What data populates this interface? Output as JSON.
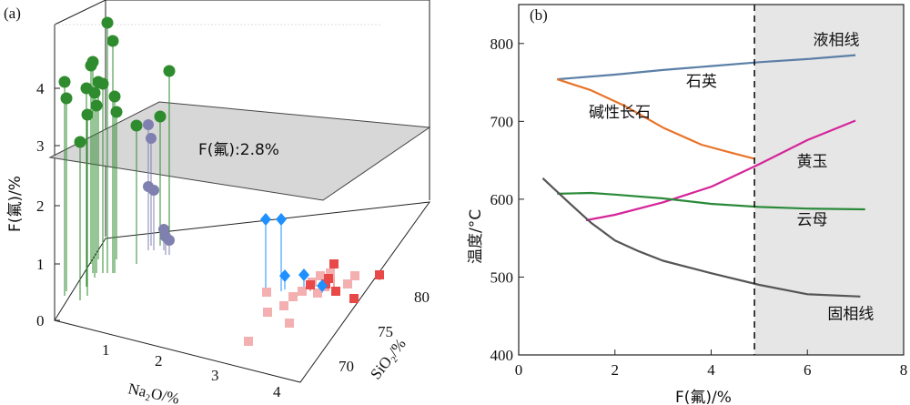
{
  "figure_a": {
    "panel_label": "(a)",
    "z_axis_label": "F(氟)/%",
    "x_axis_label": "Na₂O/%",
    "y_axis_label": "SiO₂/%",
    "plane_label": "F(氟):2.8%",
    "plane_value": 2.8,
    "z_ticks": [
      "0",
      "1",
      "2",
      "3",
      "4"
    ],
    "x_ticks": [
      "1",
      "2",
      "3",
      "4"
    ],
    "y_ticks": [
      "70",
      "75",
      "80"
    ],
    "colors": {
      "green": "#2e8b2e",
      "purple": "#8080b0",
      "blue": "#1e90ff",
      "red": "#e84848",
      "pink": "#f4b0b0",
      "plane": "#d0d0d0"
    }
  },
  "chart_data": {
    "type": "line",
    "panel_label": "(b)",
    "xlabel": "F(氟)/%",
    "ylabel": "温度/°C",
    "xlim": [
      0,
      8
    ],
    "ylim": [
      400,
      850
    ],
    "x_ticks": [
      0,
      2,
      4,
      6,
      8
    ],
    "y_ticks": [
      400,
      500,
      600,
      700,
      800
    ],
    "grid": false,
    "shaded_region": {
      "x_from": 4.9,
      "x_to": 8
    },
    "dashed_line_x": 4.9,
    "series": [
      {
        "name": "液相线",
        "color": "#5b7fa6",
        "x": [
          0.8,
          2,
          3,
          4,
          5,
          6,
          7
        ],
        "y": [
          754,
          760,
          766,
          771,
          776,
          780,
          785
        ]
      },
      {
        "name": "碱性长石",
        "color": "#e8742a",
        "x": [
          0.8,
          1.5,
          2.2,
          3,
          3.8,
          4.4,
          4.9
        ],
        "y": [
          754,
          740,
          720,
          692,
          670,
          660,
          652
        ]
      },
      {
        "name": "黄玉",
        "color": "#d6259a",
        "x": [
          1.4,
          2,
          3,
          4,
          5,
          6,
          7
        ],
        "y": [
          573,
          580,
          596,
          616,
          645,
          676,
          701
        ]
      },
      {
        "name": "云母",
        "color": "#2a8a3a",
        "x": [
          0.8,
          1.5,
          2,
          3,
          4,
          5,
          6,
          7.2
        ],
        "y": [
          607,
          608,
          606,
          601,
          594,
          590,
          588,
          587
        ]
      },
      {
        "name": "固相线",
        "color": "#555555",
        "x": [
          0.5,
          1,
          1.5,
          2,
          2.5,
          3,
          4,
          5,
          6,
          7.1
        ],
        "y": [
          627,
          598,
          570,
          547,
          533,
          521,
          505,
          490,
          478,
          475
        ]
      }
    ],
    "annotations": [
      {
        "text": "石英",
        "x": 3.8,
        "y": 745
      },
      {
        "text": "碱性长石",
        "x": 2.1,
        "y": 705
      },
      {
        "text": "液相线",
        "x": 6.6,
        "y": 798
      },
      {
        "text": "黄玉",
        "x": 6.1,
        "y": 642
      },
      {
        "text": "云母",
        "x": 6.1,
        "y": 567
      },
      {
        "text": "固相线",
        "x": 6.9,
        "y": 446
      }
    ]
  }
}
